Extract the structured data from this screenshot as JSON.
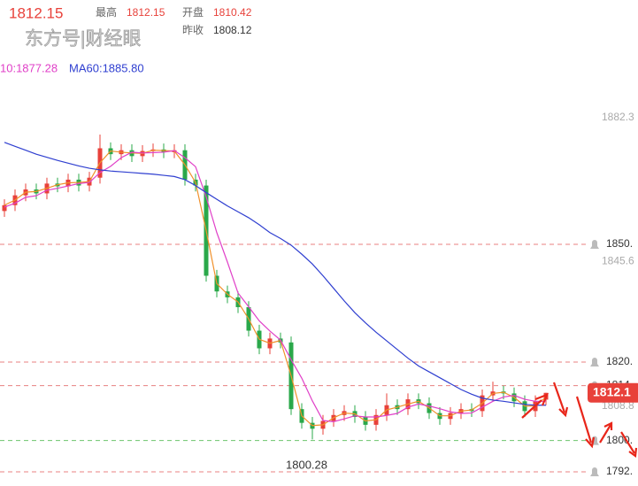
{
  "chart_data": {
    "type": "candlestick",
    "header": {
      "price": "1812.15",
      "high_label": "最高",
      "high": "1812.15",
      "open_label": "开盘",
      "open": "1810.42",
      "prev_close_label": "昨收",
      "prev_close": "1808.12",
      "watermark": "东方号|财经眼"
    },
    "ma_labels": [
      {
        "text": "10:1877.28",
        "color": "#e040c8"
      },
      {
        "text": "MA60:1885.80",
        "color": "#2f3fd0"
      }
    ],
    "annotation": "1800.28",
    "price_tag": "1812.1",
    "up_color": "#e8413a",
    "down_color": "#2aa84a",
    "ylim": [
      1788.4,
      1912.3
    ],
    "yticks": [
      1882.3,
      1845.6,
      1808.8
    ],
    "alert_lines": [
      {
        "value": 1850,
        "label": "1850.",
        "color": "#e88080"
      },
      {
        "value": 1820,
        "label": "1820.",
        "color": "#e88080"
      },
      {
        "value": 1814,
        "label": "1814",
        "color": "#e88080"
      },
      {
        "value": 1800,
        "label": "1800.",
        "color": "#6cc46c"
      },
      {
        "value": 1792,
        "label": "1792.",
        "color": "#e88080"
      }
    ],
    "open": [
      1858.5,
      1860.0,
      1862.5,
      1864.0,
      1863.0,
      1865.5,
      1864.8,
      1866.5,
      1865.0,
      1867.0,
      1874.5,
      1873.0,
      1874.0,
      1872.5,
      1873.8,
      1874.2,
      1873.5,
      1874.0,
      1866.5,
      1865.0,
      1842.0,
      1838.0,
      1836.5,
      1834.0,
      1828.0,
      1823.5,
      1826.0,
      1825.0,
      1808.0,
      1804.5,
      1803.0,
      1805.0,
      1806.5,
      1807.5,
      1806.0,
      1804.0,
      1806.5,
      1809.0,
      1808.0,
      1810.5,
      1809.5,
      1807.0,
      1805.5,
      1807.0,
      1808.0,
      1807.5,
      1811.5,
      1812.5,
      1812.0,
      1810.0,
      1807.5,
      1810.42
    ],
    "high": [
      1861.5,
      1864.0,
      1865.5,
      1865.5,
      1867.0,
      1867.0,
      1868.0,
      1868.0,
      1868.5,
      1878.0,
      1876.0,
      1875.5,
      1875.5,
      1875.3,
      1875.7,
      1875.7,
      1875.5,
      1875.5,
      1868.0,
      1866.5,
      1843.5,
      1839.5,
      1838.0,
      1835.5,
      1829.5,
      1827.5,
      1827.5,
      1826.5,
      1809.5,
      1806.0,
      1806.5,
      1808.0,
      1809.0,
      1809.0,
      1807.5,
      1808.0,
      1812.0,
      1810.5,
      1812.0,
      1812.0,
      1811.0,
      1808.5,
      1808.5,
      1809.5,
      1809.5,
      1813.0,
      1815.0,
      1814.0,
      1813.5,
      1811.5,
      1811.5,
      1812.15
    ],
    "low": [
      1857.0,
      1858.5,
      1861.0,
      1861.5,
      1861.5,
      1863.3,
      1863.3,
      1863.5,
      1863.5,
      1865.5,
      1871.5,
      1871.5,
      1871.0,
      1871.0,
      1872.3,
      1872.0,
      1872.0,
      1865.0,
      1863.5,
      1840.5,
      1836.5,
      1835.0,
      1832.5,
      1826.5,
      1822.0,
      1822.0,
      1823.5,
      1806.5,
      1803.0,
      1800.28,
      1801.5,
      1803.5,
      1805.0,
      1804.5,
      1802.5,
      1802.5,
      1805.0,
      1806.5,
      1806.5,
      1808.0,
      1805.5,
      1804.0,
      1804.0,
      1805.5,
      1806.0,
      1806.0,
      1810.0,
      1810.5,
      1808.5,
      1806.0,
      1806.0,
      1809.0
    ],
    "close": [
      1860.0,
      1862.5,
      1864.0,
      1863.0,
      1865.5,
      1864.8,
      1866.5,
      1865.0,
      1867.0,
      1874.5,
      1873.0,
      1874.0,
      1872.5,
      1873.8,
      1874.2,
      1873.5,
      1874.0,
      1866.5,
      1865.0,
      1842.0,
      1838.0,
      1836.5,
      1834.0,
      1828.0,
      1823.5,
      1826.0,
      1825.0,
      1808.0,
      1804.5,
      1803.0,
      1805.0,
      1806.5,
      1807.5,
      1806.0,
      1804.0,
      1806.5,
      1809.0,
      1808.0,
      1810.5,
      1809.5,
      1807.0,
      1805.5,
      1807.0,
      1808.0,
      1807.5,
      1811.5,
      1812.5,
      1812.0,
      1810.0,
      1807.5,
      1810.0,
      1812.15
    ],
    "lines": [
      {
        "color": "#f0902a",
        "values": [
          1860.0,
          1861.3,
          1863.3,
          1863.5,
          1864.3,
          1865.2,
          1865.7,
          1865.8,
          1866.0,
          1870.8,
          1873.8,
          1873.5,
          1873.3,
          1873.2,
          1874.0,
          1873.9,
          1873.8,
          1870.3,
          1865.8,
          1853.5,
          1840.0,
          1837.3,
          1835.3,
          1831.0,
          1825.8,
          1824.8,
          1825.5,
          1816.5,
          1806.3,
          1803.8,
          1804.0,
          1805.8,
          1807.0,
          1806.8,
          1805.0,
          1805.3,
          1807.8,
          1808.5,
          1809.3,
          1810.0,
          1808.3,
          1806.3,
          1806.3,
          1807.5,
          1807.8,
          1809.5,
          1812.0,
          1812.3,
          1811.0,
          1808.8,
          1808.8,
          1811.1
        ]
      },
      {
        "color": "#e040c8",
        "values": [
          1859.5,
          1860.5,
          1862.0,
          1862.4,
          1863.8,
          1864.3,
          1864.9,
          1865.5,
          1865.8,
          1868.3,
          1869.9,
          1872.1,
          1873.5,
          1873.3,
          1873.4,
          1873.5,
          1873.9,
          1872.1,
          1869.8,
          1862.1,
          1853.0,
          1845.5,
          1837.6,
          1834.1,
          1830.5,
          1827.9,
          1825.6,
          1820.6,
          1815.9,
          1810.1,
          1805.1,
          1804.8,
          1805.5,
          1806.3,
          1806.0,
          1806.0,
          1806.4,
          1806.9,
          1808.5,
          1809.3,
          1808.8,
          1808.1,
          1807.3,
          1806.9,
          1807.0,
          1808.5,
          1810.0,
          1811.1,
          1811.5,
          1810.5,
          1810.0,
          1810.0
        ]
      },
      {
        "color": "#2f3fd0",
        "values": [
          1876.0,
          1875.0,
          1874.0,
          1873.0,
          1872.2,
          1871.4,
          1870.7,
          1870.0,
          1869.4,
          1869.0,
          1868.7,
          1868.5,
          1868.3,
          1868.1,
          1867.9,
          1867.6,
          1867.3,
          1866.5,
          1865.0,
          1863.2,
          1861.5,
          1859.8,
          1858.3,
          1856.8,
          1855.0,
          1853.0,
          1851.5,
          1849.8,
          1847.5,
          1845.0,
          1842.0,
          1838.8,
          1835.6,
          1832.6,
          1830.0,
          1827.6,
          1825.4,
          1823.2,
          1821.0,
          1819.0,
          1817.5,
          1816.0,
          1814.5,
          1813.0,
          1811.8,
          1810.8,
          1810.3,
          1810.0,
          1809.6,
          1809.2,
          1809.0,
          1809.0
        ]
      }
    ]
  }
}
